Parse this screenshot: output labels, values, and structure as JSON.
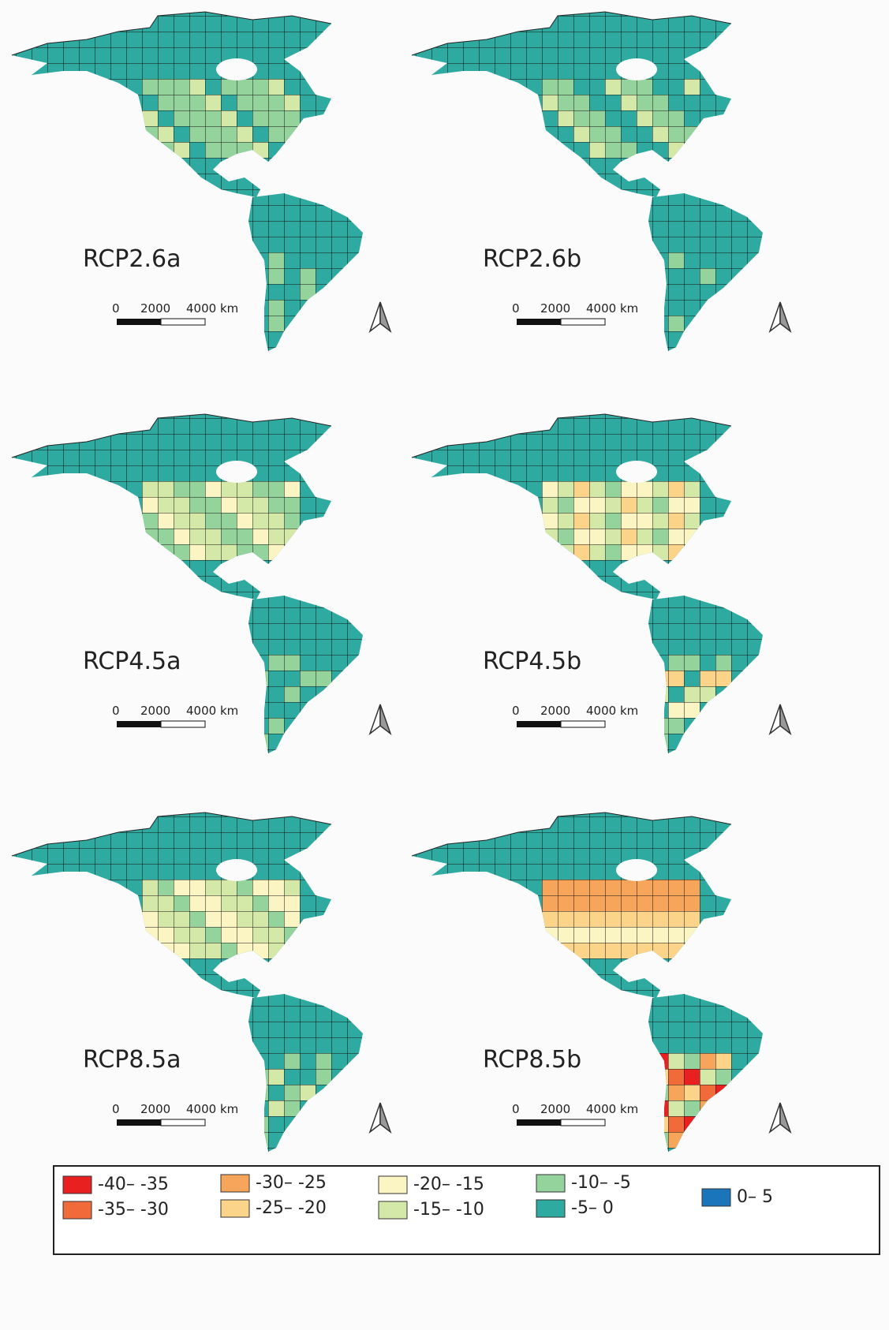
{
  "panels": [
    {
      "label": "RCP2.6a"
    },
    {
      "label": "RCP2.6b"
    },
    {
      "label": "RCP4.5a"
    },
    {
      "label": "RCP4.5b"
    },
    {
      "label": "RCP8.5a"
    },
    {
      "label": "RCP8.5b"
    }
  ],
  "scale_bar": {
    "labels": [
      "0",
      "2000",
      "4000 km"
    ]
  },
  "legend": {
    "items": [
      {
        "label": "-40– -35",
        "color": "#e8201f"
      },
      {
        "label": "-35– -30",
        "color": "#f06a3a"
      },
      {
        "label": "-30– -25",
        "color": "#f6a55a"
      },
      {
        "label": "-25– -20",
        "color": "#fbd48a"
      },
      {
        "label": "-20– -15",
        "color": "#fbf5c3"
      },
      {
        "label": "-15– -10",
        "color": "#d4e8a8"
      },
      {
        "label": "-10– -5",
        "color": "#95d39c"
      },
      {
        "label": "-5– 0",
        "color": "#2eaaa0"
      },
      {
        "label": "0– 5",
        "color": "#1b75bb"
      }
    ]
  }
}
